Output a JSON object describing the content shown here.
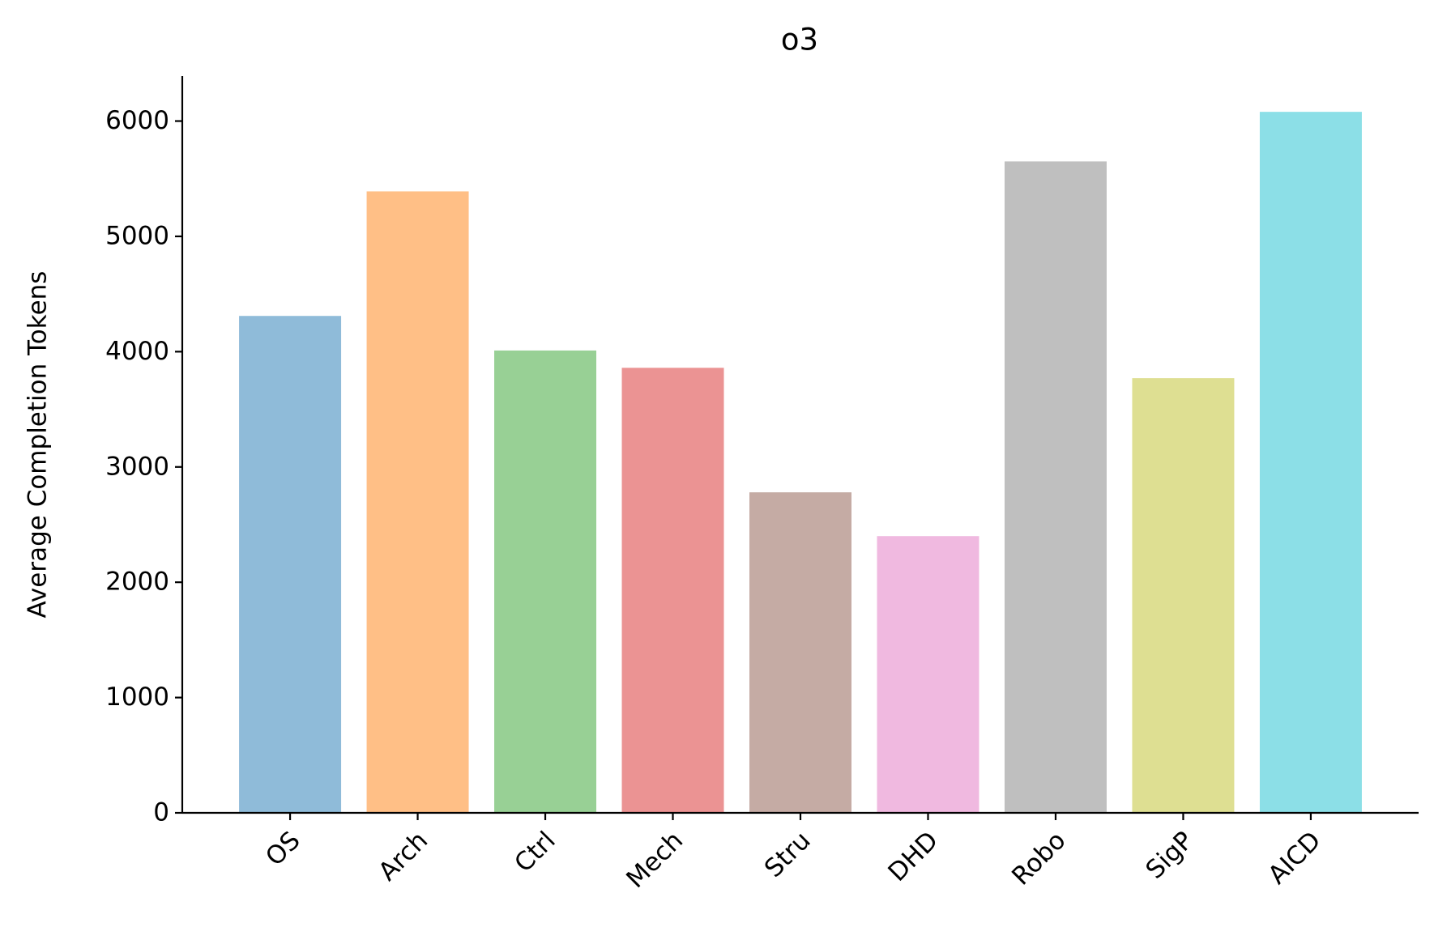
{
  "chart_data": {
    "type": "bar",
    "title": "o3",
    "y_label": "Average Completion Tokens",
    "categories": [
      "OS",
      "Arch",
      "Ctrl",
      "Mech",
      "Stru",
      "DHD",
      "Robo",
      "SigP",
      "AICD"
    ],
    "values": [
      4310,
      5390,
      4010,
      3860,
      2780,
      2400,
      5650,
      3770,
      6080
    ],
    "colors": [
      "#8fbbd9",
      "#ffbf86",
      "#98d095",
      "#eb9393",
      "#c5aba4",
      "#f0b9e0",
      "#bfbfbf",
      "#dedf92",
      "#8cdfe7"
    ],
    "ylim": [
      0,
      6390
    ],
    "yticks": [
      0,
      1000,
      2000,
      3000,
      4000,
      5000,
      6000
    ],
    "grid": false
  }
}
